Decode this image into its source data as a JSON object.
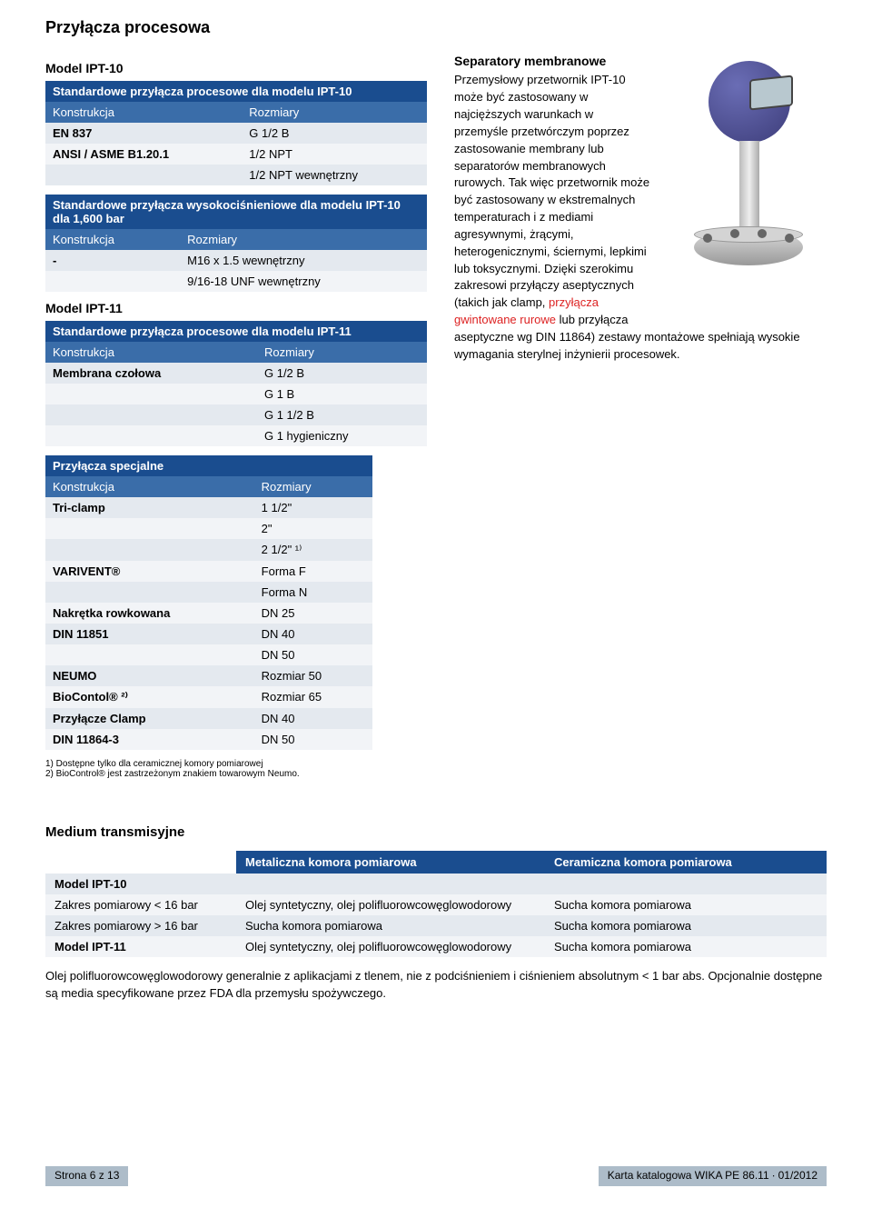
{
  "page": {
    "title": "Przyłącza procesowa",
    "footer_left": "Strona 6 z 13",
    "footer_right": "Karta katalogowa WIKA PE 86.11 ∙ 01/2012"
  },
  "model10": {
    "heading": "Model IPT-10",
    "table1": {
      "title": "Standardowe przyłącza procesowe dla modelu IPT-10",
      "col1": "Konstrukcja",
      "col2": "Rozmiary",
      "rows": [
        {
          "c1": "EN 837",
          "c2": "G 1/2 B",
          "bold": true
        },
        {
          "c1": "ANSI / ASME B1.20.1",
          "c2": "1/2 NPT",
          "bold": true
        },
        {
          "c1": "",
          "c2": "1/2 NPT wewnętrzny",
          "bold": false
        }
      ]
    },
    "table2": {
      "title": "Standardowe przyłącza wysokociśnieniowe dla modelu IPT-10 dla 1,600 bar",
      "col1": "Konstrukcja",
      "col2": "Rozmiary",
      "rows": [
        {
          "c1": "-",
          "c2": "M16 x 1.5 wewnętrzny",
          "bold": true
        },
        {
          "c1": "",
          "c2": "9/16-18 UNF wewnętrzny",
          "bold": false
        }
      ]
    }
  },
  "model11": {
    "heading": "Model IPT-11",
    "table1": {
      "title": "Standardowe przyłącza procesowe dla modelu IPT-11",
      "col1": "Konstrukcja",
      "col2": "Rozmiary",
      "rows": [
        {
          "c1": "Membrana czołowa",
          "c2": "G 1/2 B",
          "bold": true
        },
        {
          "c1": "",
          "c2": "G 1 B",
          "bold": false
        },
        {
          "c1": "",
          "c2": "G 1 1/2 B",
          "bold": false
        },
        {
          "c1": "",
          "c2": "G 1 hygieniczny",
          "bold": false
        }
      ]
    },
    "table_special": {
      "title": "Przyłącza specjalne",
      "col1": "Konstrukcja",
      "col2": "Rozmiary",
      "rows": [
        {
          "c1": "Tri-clamp",
          "c2": "1 1/2\"",
          "bold": true
        },
        {
          "c1": "",
          "c2": "2\"",
          "bold": false
        },
        {
          "c1": "",
          "c2": "2 1/2\" ¹⁾",
          "bold": false
        },
        {
          "c1": "VARIVENT®",
          "c2": "Forma F",
          "bold": true
        },
        {
          "c1": "",
          "c2": "Forma N",
          "bold": false
        },
        {
          "c1": "Nakrętka rowkowana",
          "c2": "DN 25",
          "bold": true
        },
        {
          "c1": " DIN 11851",
          "c2": "DN 40",
          "bold": true
        },
        {
          "c1": "",
          "c2": "DN 50",
          "bold": false
        },
        {
          "c1": "NEUMO",
          "c2": "Rozmiar 50",
          "bold": true
        },
        {
          "c1": "BioContol® ²⁾",
          "c2": "Rozmiar 65",
          "bold": true
        },
        {
          "c1": "Przyłącze Clamp",
          "c2": "DN 40",
          "bold": true
        },
        {
          "c1": "DIN 11864-3",
          "c2": "DN 50",
          "bold": true
        }
      ]
    },
    "footnotes": [
      "1) Dostępne tylko dla ceramicznej komory pomiarowej",
      "2) BioControl® jest zastrzeżonym znakiem towarowym Neumo."
    ]
  },
  "right": {
    "heading": "Separatory membranowe",
    "paragraph_pre": "Przemysłowy przetwornik IPT-10  może być zastosowany w najcięższych warunkach w przemyśle przetwórczym poprzez zastosowanie membrany lub separatorów membranowych rurowych. Tak więc przetwornik może być zastosowany w ekstremalnych temperaturach i z mediami agresywnymi, żrącymi, heterogenicznymi, ściernymi, lepkimi lub toksycznymi. Dzięki szerokimu zakresowi przyłączy aseptycznych (takich jak clamp, ",
    "red_text": "przyłącza gwintowane rurowe",
    "paragraph_post": " lub przyłącza aseptyczne wg DIN 11864) zestawy montażowe spełniają wysokie wymagania sterylnej inżynierii procesowek."
  },
  "medium": {
    "heading": "Medium transmisyjne",
    "header1": "Metaliczna komora pomiarowa",
    "header2": "Ceramiczna komora pomiarowa",
    "rows": [
      {
        "c1": "Model IPT-10",
        "c2": "",
        "c3": "",
        "bold": true
      },
      {
        "c1": "Zakres pomiarowy < 16 bar",
        "c2": "Olej syntetyczny, olej polifluorowcowęglowodorowy",
        "c3": "Sucha komora pomiarowa",
        "bold": false
      },
      {
        "c1": "Zakres pomiarowy > 16 bar",
        "c2": "Sucha komora pomiarowa",
        "c3": "Sucha komora pomiarowa",
        "bold": false
      },
      {
        "c1": " Model IPT-11",
        "c2": "Olej syntetyczny, olej polifluorowcowęglowodorowy",
        "c3": "Sucha komora pomiarowa",
        "bold": true
      }
    ],
    "note": "Olej polifluorowcowęglowodorowy generalnie z aplikacjami z tlenem, nie z podciśnieniem i ciśnieniem absolutnym < 1 bar abs. Opcjonalnie dostępne są media specyfikowane przez FDA dla przemysłu spożywczego."
  },
  "colors": {
    "header_dark": "#1a4d8f",
    "header_light": "#3a6da9",
    "row_bg": "#e4e9ef",
    "row_alt": "#f2f4f7",
    "footer_bg": "#adbcc9",
    "red": "#d22"
  }
}
